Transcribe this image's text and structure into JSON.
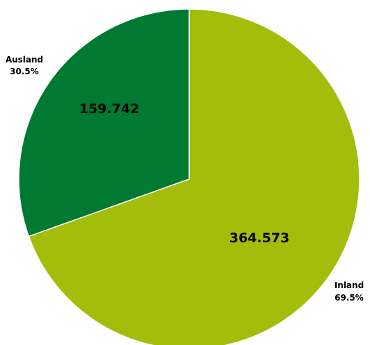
{
  "chart_data": {
    "type": "pie",
    "title": "",
    "legend": "none",
    "start_angle_deg": 0,
    "direction": "clockwise",
    "slices": [
      {
        "label": "Inland",
        "value": 364573,
        "value_label": "364.573",
        "percent_label": "69.5%",
        "color": "#a3bd0a"
      },
      {
        "label": "Ausland",
        "value": 159742,
        "value_label": "159.742",
        "percent_label": "30.5%",
        "color": "#007a32"
      }
    ]
  }
}
